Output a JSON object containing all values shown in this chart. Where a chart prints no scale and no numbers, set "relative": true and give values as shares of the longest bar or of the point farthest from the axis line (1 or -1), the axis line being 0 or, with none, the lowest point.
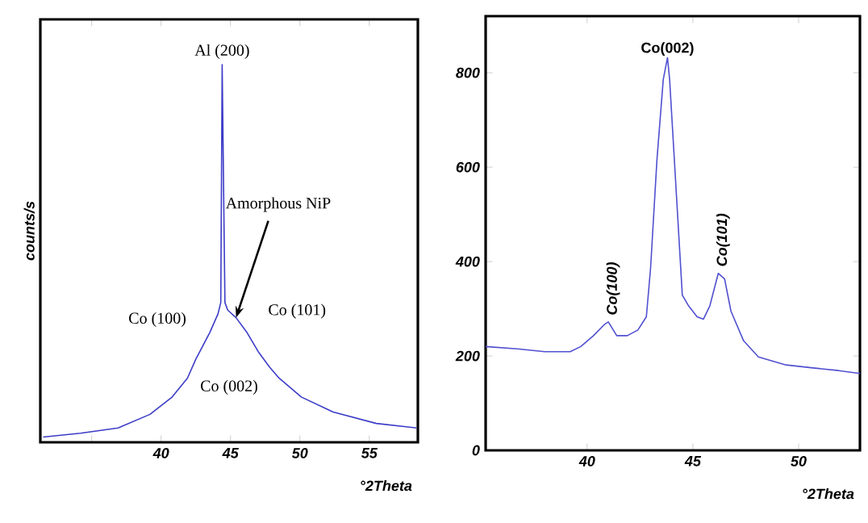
{
  "chart_data": [
    {
      "type": "line",
      "relative": true,
      "xlabel": "°2Theta",
      "ylabel": "counts/s",
      "xlim": [
        31.3,
        58.5
      ],
      "xticks": [
        {
          "value": 35,
          "label": null
        },
        40,
        45,
        50,
        55
      ],
      "series": [
        {
          "color": "#3c3cc8",
          "x": [
            31.5,
            34.2,
            36.9,
            39.2,
            40.8,
            41.9,
            42.5,
            43.5,
            44.1,
            44.3,
            44.4,
            44.6,
            44.8,
            45.4,
            46.2,
            47.0,
            47.8,
            48.5,
            50.1,
            52.4,
            55.5,
            58.4
          ],
          "values": [
            0.014,
            0.024,
            0.038,
            0.074,
            0.12,
            0.17,
            0.22,
            0.29,
            0.34,
            0.37,
            1.0,
            0.37,
            0.35,
            0.33,
            0.29,
            0.24,
            0.2,
            0.17,
            0.12,
            0.08,
            0.05,
            0.038
          ]
        }
      ],
      "annotations": [
        {
          "text": "Al (200)",
          "x": 44.4,
          "y": 1.0
        },
        {
          "text": "Amorphous NiP",
          "x": 45.4,
          "y": 0.33
        },
        "Co (100)",
        "Co (101)",
        "Co (002)"
      ]
    },
    {
      "type": "line",
      "xlabel": "°2Theta",
      "xlim": [
        35.2,
        52.9
      ],
      "xticks": [
        40,
        45,
        50
      ],
      "ylim": [
        0,
        920
      ],
      "yticks": [
        0,
        200,
        400,
        600,
        800
      ],
      "series": [
        {
          "color": "#5050d0",
          "x": [
            35.2,
            36.7,
            38.0,
            39.2,
            39.7,
            40.3,
            40.8,
            41.0,
            41.4,
            41.9,
            42.4,
            42.8,
            43.0,
            43.3,
            43.6,
            43.8,
            43.9,
            44.2,
            44.5,
            44.8,
            45.2,
            45.5,
            45.8,
            46.2,
            46.5,
            46.8,
            47.4,
            48.1,
            49.4,
            50.6,
            51.9,
            52.9
          ],
          "values": [
            220,
            215,
            209,
            209,
            220,
            243,
            266,
            272,
            243,
            243,
            255,
            283,
            386,
            615,
            786,
            832,
            786,
            558,
            329,
            306,
            283,
            278,
            306,
            375,
            363,
            295,
            232,
            198,
            181,
            175,
            169,
            163
          ]
        }
      ],
      "annotations": [
        {
          "text": "Co(002)",
          "x": 43.8,
          "y": 832
        },
        {
          "text": "Co(100)",
          "x": 41.0,
          "y": 272
        },
        {
          "text": "Co(101)",
          "x": 46.2,
          "y": 375
        }
      ]
    }
  ]
}
